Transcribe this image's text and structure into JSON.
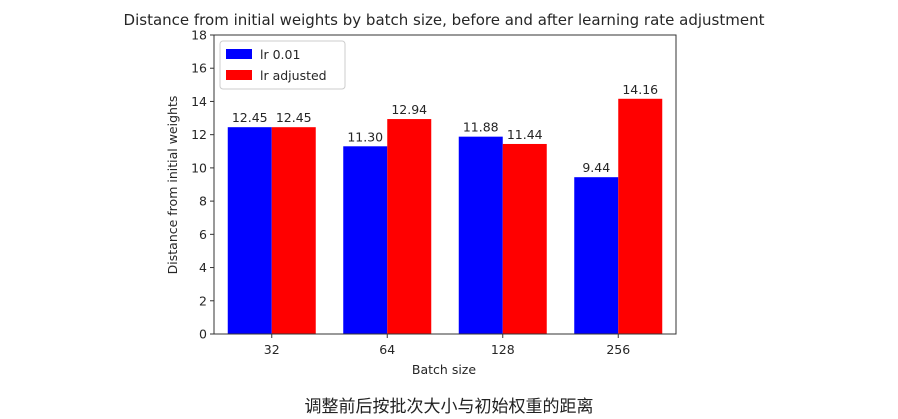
{
  "chart_data": {
    "type": "bar",
    "title": "Distance from initial weights by batch size, before and after learning rate adjustment",
    "xlabel": "Batch size",
    "ylabel": "Distance from initial weights",
    "categories": [
      "32",
      "64",
      "128",
      "256"
    ],
    "series": [
      {
        "name": "lr 0.01",
        "color": "#0000ff",
        "values": [
          12.45,
          11.3,
          11.88,
          9.44
        ]
      },
      {
        "name": "lr adjusted",
        "color": "#ff0000",
        "values": [
          12.45,
          12.94,
          11.44,
          14.16
        ]
      }
    ],
    "ylim": [
      0,
      18
    ],
    "yticks": [
      0,
      2,
      4,
      6,
      8,
      10,
      12,
      14,
      16,
      18
    ],
    "value_labels": true,
    "grid": false,
    "legend": "top-left"
  },
  "caption": "调整前后按批次大小与初始权重的距离"
}
